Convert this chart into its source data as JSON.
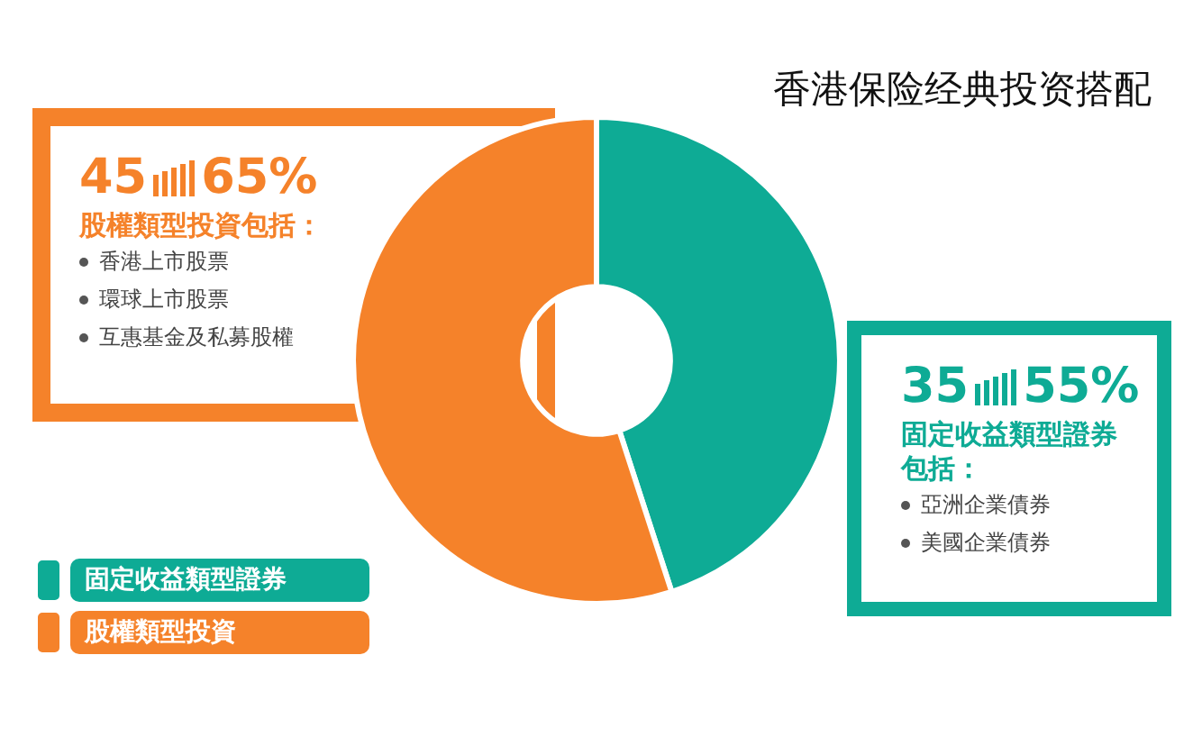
{
  "chart_data": {
    "type": "donut",
    "title": "香港保险经典投资搭配",
    "categories": [
      "固定收益類型證券",
      "股權類型投資"
    ],
    "values": [
      45,
      55
    ],
    "colors": [
      "#0eab95",
      "#f5822a"
    ],
    "legend": "bottom left",
    "annotations": [
      "45",
      "65%",
      "股權類型投資包括：",
      "香港上市股票",
      "環球上市股票",
      "互惠基金及私募股權",
      "35",
      "55%",
      "固定收益類型證券包括：",
      "亞洲企業債券",
      "美國企業債券"
    ]
  }
}
